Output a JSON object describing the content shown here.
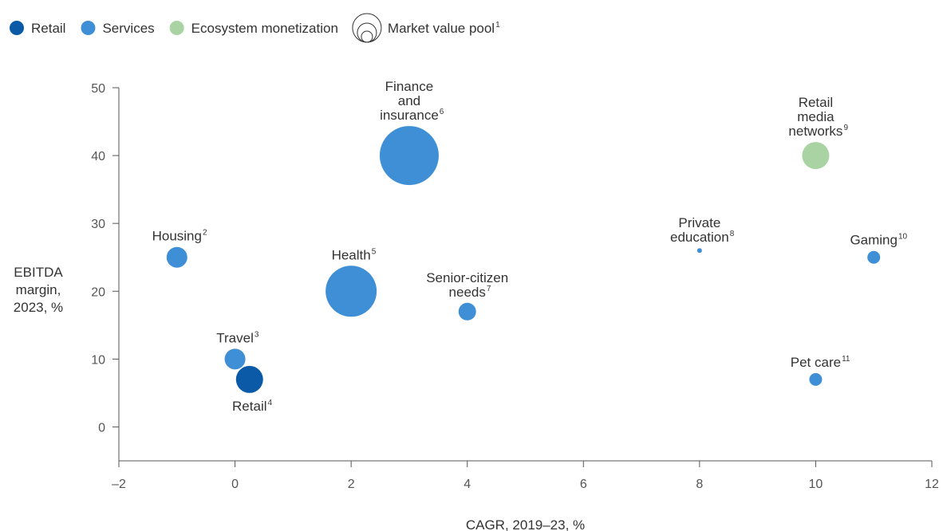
{
  "chart_data": {
    "type": "scatter",
    "x_label": "CAGR, 2019–23, %",
    "y_label": [
      "EBITDA",
      "margin,",
      "2023, %"
    ],
    "size_legend": "Market value pool",
    "size_legend_note": "1",
    "xlim": [
      -2,
      12
    ],
    "xticks": [
      {
        "value": -2,
        "label": "–2"
      },
      0,
      2,
      4,
      6,
      8,
      10,
      12
    ],
    "ylim": [
      -5,
      50
    ],
    "yticks": [
      0,
      10,
      20,
      30,
      40,
      50
    ],
    "series": [
      {
        "name": "Retail",
        "color": "#0a5aa8",
        "x": [
          0.25
        ],
        "values": [
          7
        ],
        "sizes": [
          289
        ],
        "labels": [
          [
            "Retail"
          ]
        ],
        "notes": [
          "4"
        ]
      },
      {
        "name": "Services",
        "color": "#3e8fd6",
        "x": [
          -1,
          0,
          2,
          3,
          4,
          8,
          11,
          10
        ],
        "values": [
          25,
          10,
          20,
          40,
          17,
          26,
          25,
          7
        ],
        "sizes": [
          169,
          169,
          1024,
          1369,
          121,
          9,
          64,
          64
        ],
        "labels": [
          [
            "Housing"
          ],
          [
            "Travel"
          ],
          [
            "Health"
          ],
          [
            "Finance",
            "and",
            "insurance"
          ],
          [
            "Senior-citizen",
            "needs"
          ],
          [
            "Private",
            "education"
          ],
          [
            "Gaming"
          ],
          [
            "Pet care"
          ]
        ],
        "notes": [
          "2",
          "3",
          "5",
          "6",
          "7",
          "8",
          "10",
          "11"
        ]
      },
      {
        "name": "Ecosystem monetization",
        "color": "#a9d3a2",
        "x": [
          10
        ],
        "values": [
          40
        ],
        "sizes": [
          289
        ],
        "labels": [
          [
            "Retail",
            "media",
            "networks"
          ]
        ],
        "notes": [
          "9"
        ]
      }
    ]
  }
}
